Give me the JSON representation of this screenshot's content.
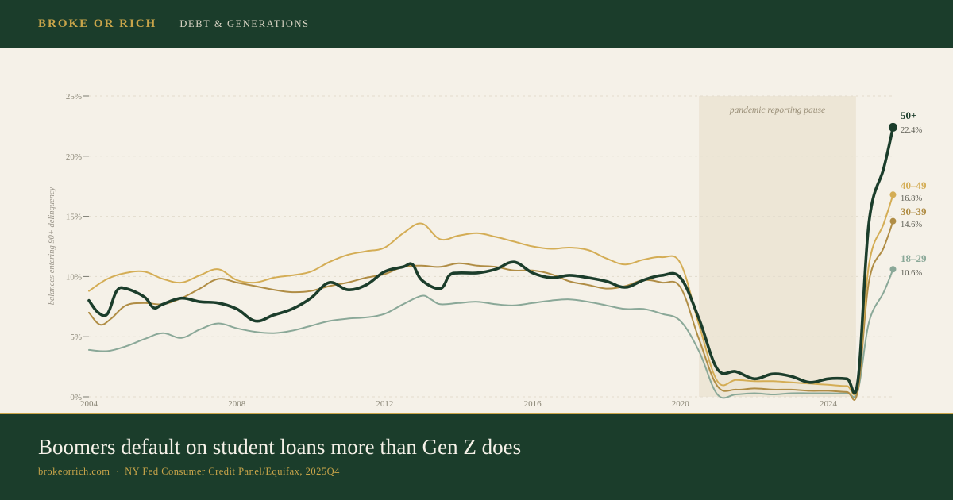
{
  "header": {
    "brand": "BROKE OR RICH",
    "section": "DEBT & GENERATIONS"
  },
  "footer": {
    "headline": "Boomers default on student loans more than Gen Z does",
    "site": "brokeorrich.com",
    "separator": "·",
    "source": "NY Fed Consumer Credit Panel/Equifax, 2025Q4"
  },
  "colors": {
    "background": "#f5f1e8",
    "header_bg": "#1b3d2b",
    "accent": "#c9a54a",
    "series_50plus": "#1b3d2b",
    "series_40_49": "#d4ad55",
    "series_30_39": "#b08d45",
    "series_18_29": "#8aa898",
    "pause_band": "#ede6d6"
  },
  "chart_data": {
    "type": "line",
    "ylabel": "balances entering 90+ delinquency",
    "y_unit": "%",
    "ylim": [
      0,
      25
    ],
    "yticks": [
      "0%",
      "5%",
      "10%",
      "15%",
      "20%",
      "25%"
    ],
    "xlim": [
      2004,
      2025.9
    ],
    "xticks": [
      "2004",
      "2008",
      "2012",
      "2016",
      "2020",
      "2024"
    ],
    "grid": "horizontal dashed",
    "annotation": {
      "label": "pandemic reporting pause",
      "x_start": 2020.5,
      "x_end": 2024.75
    },
    "series": [
      {
        "name": "18–29",
        "end_label": "10.6%",
        "color": "#8aa898",
        "width": 2,
        "points": [
          [
            2004,
            3.9
          ],
          [
            2004.5,
            3.8
          ],
          [
            2005,
            4.2
          ],
          [
            2005.5,
            4.8
          ],
          [
            2006,
            5.3
          ],
          [
            2006.5,
            4.9
          ],
          [
            2007,
            5.6
          ],
          [
            2007.5,
            6.1
          ],
          [
            2008,
            5.7
          ],
          [
            2008.5,
            5.4
          ],
          [
            2009,
            5.3
          ],
          [
            2009.5,
            5.5
          ],
          [
            2010,
            5.9
          ],
          [
            2010.5,
            6.3
          ],
          [
            2011,
            6.5
          ],
          [
            2011.5,
            6.6
          ],
          [
            2012,
            6.9
          ],
          [
            2012.5,
            7.7
          ],
          [
            2013,
            8.4
          ],
          [
            2013.25,
            8.1
          ],
          [
            2013.5,
            7.7
          ],
          [
            2014,
            7.8
          ],
          [
            2014.5,
            7.9
          ],
          [
            2015,
            7.7
          ],
          [
            2015.5,
            7.6
          ],
          [
            2016,
            7.8
          ],
          [
            2016.5,
            8.0
          ],
          [
            2017,
            8.1
          ],
          [
            2017.5,
            7.9
          ],
          [
            2018,
            7.6
          ],
          [
            2018.5,
            7.3
          ],
          [
            2019,
            7.3
          ],
          [
            2019.5,
            6.9
          ],
          [
            2020,
            6.3
          ],
          [
            2020.5,
            3.8
          ],
          [
            2021,
            0.2
          ],
          [
            2021.5,
            0.2
          ],
          [
            2022,
            0.3
          ],
          [
            2022.5,
            0.2
          ],
          [
            2023,
            0.3
          ],
          [
            2023.5,
            0.3
          ],
          [
            2024,
            0.3
          ],
          [
            2024.5,
            0.3
          ],
          [
            2024.8,
            0.5
          ],
          [
            2025.1,
            6.2
          ],
          [
            2025.5,
            8.7
          ],
          [
            2025.75,
            10.6
          ]
        ]
      },
      {
        "name": "30–39",
        "end_label": "14.6%",
        "color": "#b08d45",
        "width": 2,
        "points": [
          [
            2004,
            7.0
          ],
          [
            2004.3,
            6.0
          ],
          [
            2004.6,
            6.5
          ],
          [
            2005,
            7.6
          ],
          [
            2005.5,
            7.8
          ],
          [
            2006,
            7.7
          ],
          [
            2006.5,
            8.2
          ],
          [
            2007,
            9.0
          ],
          [
            2007.5,
            9.8
          ],
          [
            2008,
            9.5
          ],
          [
            2008.5,
            9.2
          ],
          [
            2009,
            8.9
          ],
          [
            2009.5,
            8.7
          ],
          [
            2010,
            8.8
          ],
          [
            2010.5,
            9.2
          ],
          [
            2011,
            9.5
          ],
          [
            2011.5,
            9.9
          ],
          [
            2012,
            10.2
          ],
          [
            2012.5,
            10.8
          ],
          [
            2013,
            10.9
          ],
          [
            2013.5,
            10.8
          ],
          [
            2014,
            11.1
          ],
          [
            2014.5,
            10.9
          ],
          [
            2015,
            10.8
          ],
          [
            2015.5,
            10.5
          ],
          [
            2016,
            10.5
          ],
          [
            2016.5,
            10.2
          ],
          [
            2017,
            9.6
          ],
          [
            2017.5,
            9.3
          ],
          [
            2018,
            9.0
          ],
          [
            2018.5,
            9.2
          ],
          [
            2019,
            9.7
          ],
          [
            2019.5,
            9.5
          ],
          [
            2020,
            9.1
          ],
          [
            2020.5,
            4.8
          ],
          [
            2021,
            0.9
          ],
          [
            2021.5,
            0.6
          ],
          [
            2022,
            0.7
          ],
          [
            2022.5,
            0.6
          ],
          [
            2023,
            0.6
          ],
          [
            2023.5,
            0.5
          ],
          [
            2024,
            0.5
          ],
          [
            2024.5,
            0.4
          ],
          [
            2024.8,
            0.5
          ],
          [
            2025.1,
            9.6
          ],
          [
            2025.5,
            12.4
          ],
          [
            2025.75,
            14.6
          ]
        ]
      },
      {
        "name": "40–49",
        "end_label": "16.8%",
        "color": "#d4ad55",
        "width": 2,
        "points": [
          [
            2004,
            8.8
          ],
          [
            2004.5,
            9.8
          ],
          [
            2005,
            10.3
          ],
          [
            2005.5,
            10.4
          ],
          [
            2006,
            9.8
          ],
          [
            2006.5,
            9.5
          ],
          [
            2007,
            10.1
          ],
          [
            2007.5,
            10.6
          ],
          [
            2008,
            9.7
          ],
          [
            2008.5,
            9.5
          ],
          [
            2009,
            9.9
          ],
          [
            2009.5,
            10.1
          ],
          [
            2010,
            10.4
          ],
          [
            2010.5,
            11.2
          ],
          [
            2011,
            11.8
          ],
          [
            2011.5,
            12.1
          ],
          [
            2012,
            12.4
          ],
          [
            2012.5,
            13.6
          ],
          [
            2013,
            14.4
          ],
          [
            2013.5,
            13.1
          ],
          [
            2014,
            13.4
          ],
          [
            2014.5,
            13.6
          ],
          [
            2015,
            13.3
          ],
          [
            2015.5,
            12.9
          ],
          [
            2016,
            12.5
          ],
          [
            2016.5,
            12.3
          ],
          [
            2017,
            12.4
          ],
          [
            2017.5,
            12.2
          ],
          [
            2018,
            11.5
          ],
          [
            2018.5,
            11.0
          ],
          [
            2019,
            11.4
          ],
          [
            2019.5,
            11.6
          ],
          [
            2020,
            11.1
          ],
          [
            2020.5,
            6.0
          ],
          [
            2021,
            1.3
          ],
          [
            2021.5,
            1.4
          ],
          [
            2022,
            1.3
          ],
          [
            2022.5,
            1.3
          ],
          [
            2023,
            1.2
          ],
          [
            2023.5,
            1.1
          ],
          [
            2024,
            1.0
          ],
          [
            2024.5,
            0.9
          ],
          [
            2024.8,
            1.0
          ],
          [
            2025.1,
            11.0
          ],
          [
            2025.5,
            14.4
          ],
          [
            2025.75,
            16.8
          ]
        ]
      },
      {
        "name": "50+",
        "end_label": "22.4%",
        "color": "#1b3d2b",
        "width": 3.6,
        "points": [
          [
            2004,
            8.0
          ],
          [
            2004.25,
            7.0
          ],
          [
            2004.5,
            6.9
          ],
          [
            2004.75,
            8.8
          ],
          [
            2005,
            9.0
          ],
          [
            2005.5,
            8.3
          ],
          [
            2005.75,
            7.4
          ],
          [
            2006,
            7.7
          ],
          [
            2006.5,
            8.2
          ],
          [
            2007,
            7.9
          ],
          [
            2007.5,
            7.8
          ],
          [
            2008,
            7.3
          ],
          [
            2008.5,
            6.3
          ],
          [
            2009,
            6.8
          ],
          [
            2009.5,
            7.3
          ],
          [
            2010,
            8.2
          ],
          [
            2010.5,
            9.5
          ],
          [
            2011,
            8.9
          ],
          [
            2011.5,
            9.3
          ],
          [
            2012,
            10.4
          ],
          [
            2012.5,
            10.8
          ],
          [
            2012.75,
            11.0
          ],
          [
            2013,
            9.7
          ],
          [
            2013.5,
            9.0
          ],
          [
            2013.75,
            10.1
          ],
          [
            2014,
            10.3
          ],
          [
            2014.5,
            10.3
          ],
          [
            2015,
            10.6
          ],
          [
            2015.5,
            11.2
          ],
          [
            2016,
            10.3
          ],
          [
            2016.5,
            9.9
          ],
          [
            2017,
            10.1
          ],
          [
            2017.5,
            9.9
          ],
          [
            2018,
            9.6
          ],
          [
            2018.5,
            9.1
          ],
          [
            2019,
            9.7
          ],
          [
            2019.5,
            10.1
          ],
          [
            2020,
            9.9
          ],
          [
            2020.5,
            6.5
          ],
          [
            2021,
            2.3
          ],
          [
            2021.5,
            2.1
          ],
          [
            2022,
            1.5
          ],
          [
            2022.5,
            1.9
          ],
          [
            2023,
            1.7
          ],
          [
            2023.5,
            1.2
          ],
          [
            2024,
            1.5
          ],
          [
            2024.5,
            1.5
          ],
          [
            2024.8,
            1.3
          ],
          [
            2025.1,
            14.5
          ],
          [
            2025.5,
            19.0
          ],
          [
            2025.75,
            22.4
          ]
        ]
      }
    ]
  }
}
